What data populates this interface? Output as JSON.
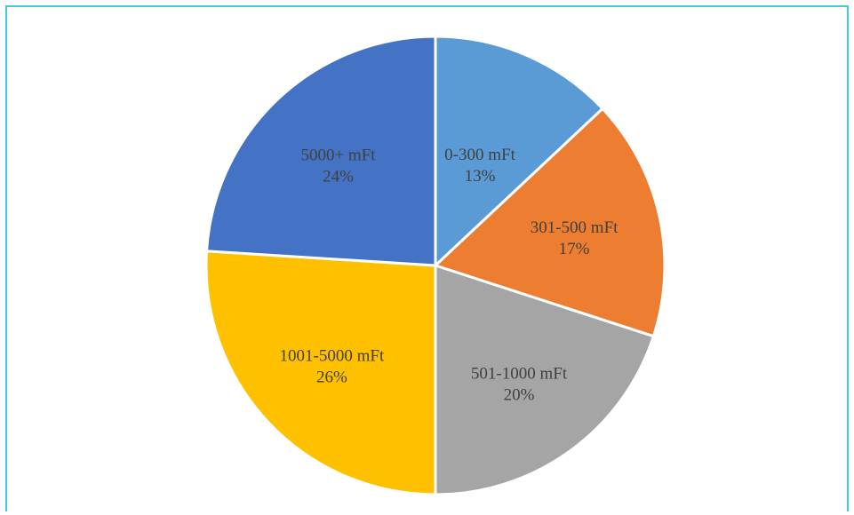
{
  "chart_data": {
    "type": "pie",
    "title": "",
    "slices": [
      {
        "label": "0-300 mFt",
        "value": 13,
        "percent_label": "13%",
        "color": "#5b9bd5"
      },
      {
        "label": "301-500 mFt",
        "value": 17,
        "percent_label": "17%",
        "color": "#ed7d31"
      },
      {
        "label": "501-1000 mFt",
        "value": 20,
        "percent_label": "20%",
        "color": "#a5a5a5"
      },
      {
        "label": "1001-5000 mFt",
        "value": 26,
        "percent_label": "26%",
        "color": "#ffc000"
      },
      {
        "label": "5000+ mFt",
        "value": 24,
        "percent_label": "24%",
        "color": "#4472c4"
      }
    ],
    "start_angle_deg": 0,
    "direction": "clockwise",
    "legend": "none",
    "data_labels": "inside"
  },
  "frame": {
    "border_color": "#3ecfd6"
  }
}
